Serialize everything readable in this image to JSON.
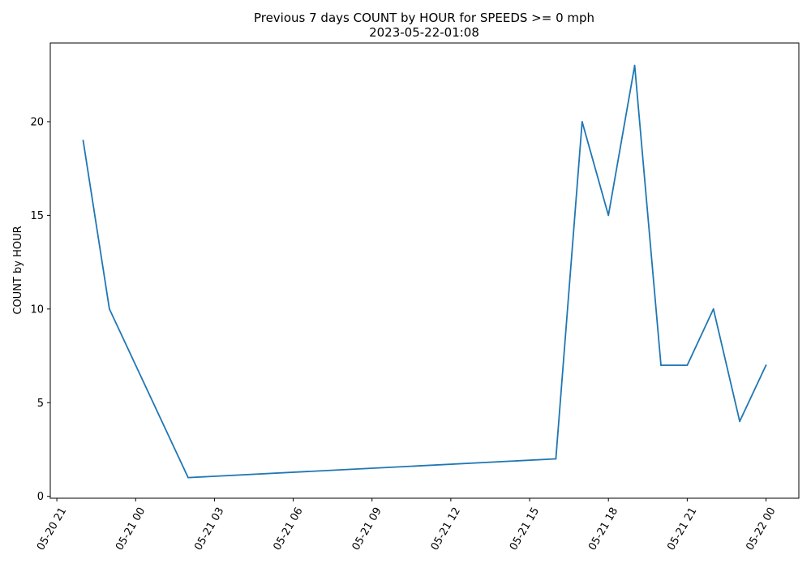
{
  "chart_data": {
    "type": "line",
    "title_line1": "Previous 7 days COUNT by HOUR for SPEEDS >= 0 mph",
    "title_line2": "2023-05-22-01:08",
    "xlabel": "",
    "ylabel": "COUNT by HOUR",
    "x_tick_labels": [
      "05-20 21",
      "05-21 00",
      "05-21 03",
      "05-21 06",
      "05-21 09",
      "05-21 12",
      "05-21 15",
      "05-21 18",
      "05-21 21",
      "05-22 00"
    ],
    "y_tick_labels": [
      "0",
      "5",
      "10",
      "15",
      "20"
    ],
    "y_ticks": [
      0,
      5,
      10,
      15,
      20
    ],
    "ylim": [
      -0.1,
      24.2
    ],
    "xlim": [
      "2023-05-20 20:45",
      "2023-05-22 01:15"
    ],
    "grid": false,
    "series": [
      {
        "color": "#1f77b4",
        "x": [
          "2023-05-20 22:00",
          "2023-05-20 23:00",
          "2023-05-21 02:00",
          "2023-05-21 16:00",
          "2023-05-21 17:00",
          "2023-05-21 18:00",
          "2023-05-21 19:00",
          "2023-05-21 20:00",
          "2023-05-21 21:00",
          "2023-05-21 22:00",
          "2023-05-21 23:00",
          "2023-05-22 00:00"
        ],
        "y": [
          19,
          10,
          1,
          2,
          20,
          15,
          23,
          7,
          7,
          10,
          4,
          7
        ]
      }
    ]
  }
}
